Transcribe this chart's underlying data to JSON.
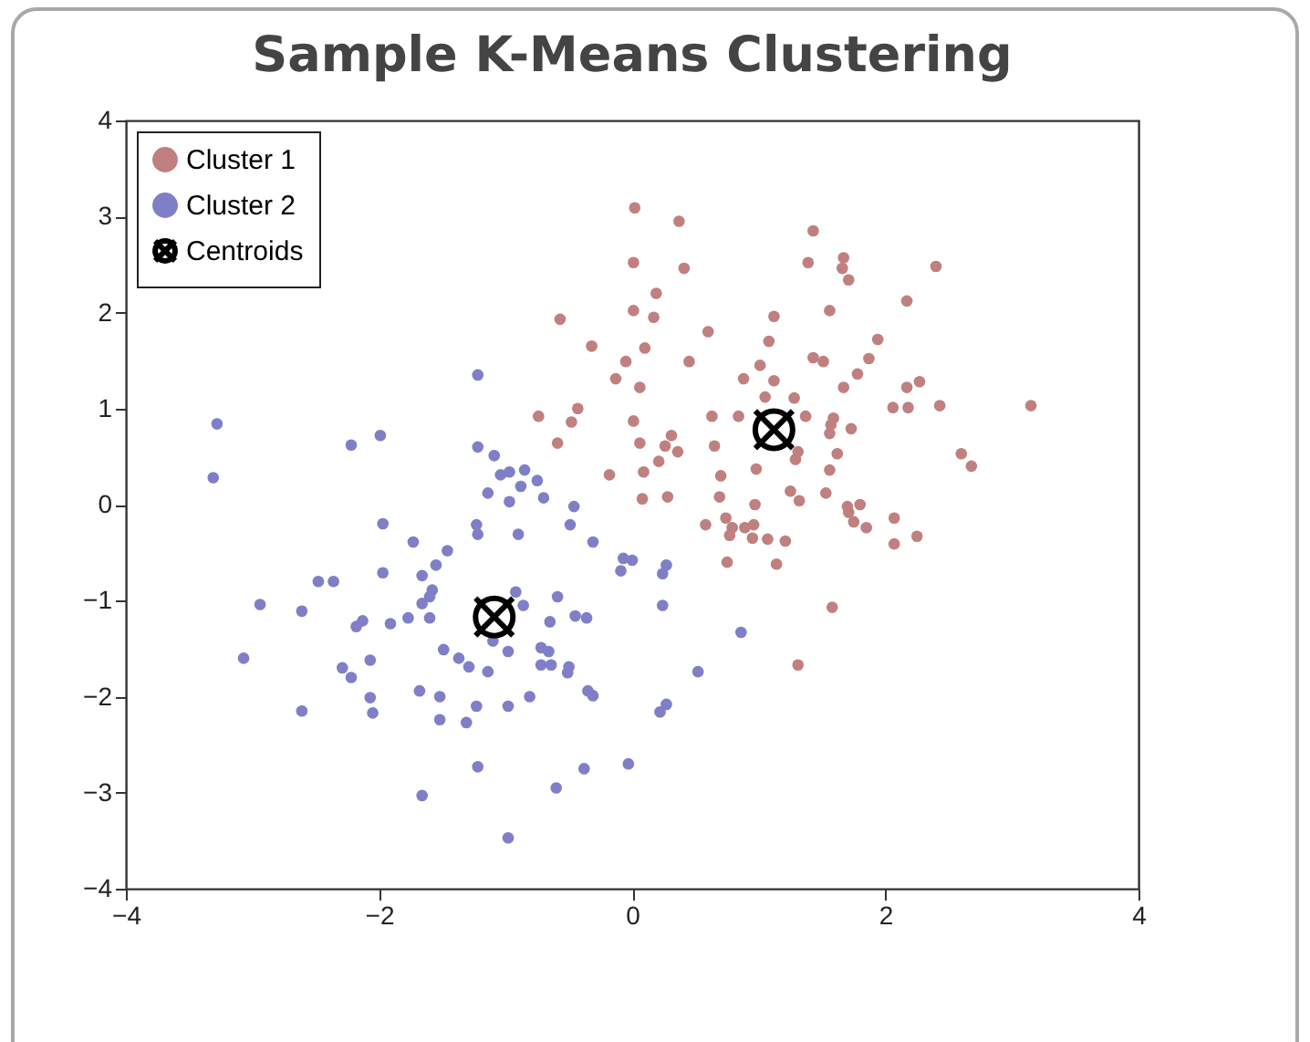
{
  "chart_data": {
    "type": "scatter",
    "title": "Sample K-Means Clustering",
    "xlim": [
      -4,
      4
    ],
    "xticks": [
      -4,
      -2,
      0,
      2,
      4
    ],
    "ylim": [
      -4,
      4
    ],
    "yticks": [
      -4,
      -3,
      -2,
      -1,
      0,
      1,
      2,
      3,
      4
    ],
    "grid": false,
    "legend": "top left",
    "series": [
      {
        "name": "Cluster 1",
        "color": "#c08080",
        "marker": "circle",
        "x": [
          0.02,
          0.37,
          1.43,
          0.01,
          0.41,
          1.39,
          1.67,
          1.66,
          1.71,
          2.4,
          0.19,
          0.01,
          0.17,
          1.12,
          1.56,
          2.17,
          0.6,
          1.08,
          1.94,
          0.1,
          -0.05,
          0.45,
          1.01,
          1.43,
          1.51,
          1.87,
          1.78,
          0.88,
          1.12,
          0.06,
          1.67,
          2.17,
          2.27,
          1.05,
          1.28,
          0.01,
          0.63,
          0.84,
          1.37,
          1.59,
          1.57,
          1.56,
          2.06,
          2.18,
          2.43,
          3.15,
          1.73,
          0.06,
          0.31,
          0.26,
          0.36,
          0.65,
          0.98,
          1.31,
          1.29,
          1.62,
          1.56,
          2.6,
          2.68,
          0.09,
          0.21,
          0.7,
          0.08,
          0.28,
          0.69,
          1.25,
          1.32,
          0.97,
          1.53,
          1.7,
          1.8,
          -0.57,
          -0.32,
          -0.13,
          -0.43,
          -0.74,
          -0.48,
          -0.59,
          -0.18,
          0.58,
          0.74,
          0.79,
          0.77,
          0.89,
          0.96,
          0.95,
          1.07,
          1.21,
          0.75,
          1.14,
          1.71,
          1.75,
          1.85,
          2.07,
          2.07,
          2.25,
          1.58,
          1.31
        ],
        "values": [
          3.09,
          2.95,
          2.85,
          2.52,
          2.46,
          2.52,
          2.57,
          2.46,
          2.34,
          2.48,
          2.2,
          2.02,
          1.95,
          1.96,
          2.02,
          2.12,
          1.8,
          1.7,
          1.72,
          1.63,
          1.49,
          1.49,
          1.45,
          1.53,
          1.49,
          1.52,
          1.36,
          1.31,
          1.29,
          1.22,
          1.22,
          1.22,
          1.28,
          1.12,
          1.11,
          0.87,
          0.92,
          0.92,
          0.92,
          0.9,
          0.83,
          0.74,
          1.01,
          1.01,
          1.03,
          1.03,
          0.79,
          0.64,
          0.72,
          0.61,
          0.55,
          0.61,
          0.37,
          0.55,
          0.47,
          0.53,
          0.36,
          0.53,
          0.4,
          0.34,
          0.45,
          0.3,
          0.06,
          0.08,
          0.08,
          0.14,
          0.04,
          0.0,
          0.12,
          -0.02,
          0.0,
          1.93,
          1.65,
          1.31,
          1.0,
          0.92,
          0.86,
          0.64,
          0.31,
          -0.21,
          -0.14,
          -0.24,
          -0.32,
          -0.24,
          -0.21,
          -0.35,
          -0.36,
          -0.38,
          -0.6,
          -0.62,
          -0.08,
          -0.18,
          -0.24,
          -0.14,
          -0.41,
          -0.33,
          -1.07,
          -1.67
        ]
      },
      {
        "name": "Cluster 2",
        "color": "#7f7fc8",
        "marker": "circle",
        "x": [
          -1.22,
          -3.28,
          -3.31,
          -2.22,
          -1.99,
          -1.22,
          -1.09,
          -1.04,
          -0.97,
          -0.85,
          -0.75,
          -1.14,
          -0.88,
          -0.97,
          -0.7,
          -0.46,
          -1.97,
          -1.23,
          -1.22,
          -0.9,
          -0.49,
          -1.73,
          -1.46,
          -0.31,
          -0.07,
          -0.09,
          0.0,
          -2.48,
          -2.36,
          -1.97,
          -1.66,
          -1.55,
          -1.58,
          -1.6,
          -1.66,
          -2.94,
          -2.61,
          -2.18,
          -2.13,
          -1.91,
          -1.77,
          -1.6,
          -0.92,
          -0.86,
          -0.59,
          -0.45,
          -0.36,
          -0.65,
          -1.1,
          -0.98,
          -1.49,
          -3.07,
          -2.29,
          -2.22,
          -2.07,
          -1.37,
          -1.29,
          -1.14,
          -0.72,
          -0.66,
          -0.72,
          -0.64,
          -0.5,
          -0.51,
          -0.35,
          -0.31,
          -2.07,
          -2.05,
          -2.61,
          -1.68,
          -1.52,
          -1.52,
          -1.23,
          -1.31,
          -0.98,
          -0.81,
          -1.22,
          -1.66,
          -0.6,
          -0.38,
          -0.03,
          -0.98,
          0.27,
          0.24,
          0.24,
          0.86,
          0.52,
          0.27,
          0.22
        ],
        "values": [
          1.35,
          0.84,
          0.28,
          0.62,
          0.72,
          0.6,
          0.51,
          0.31,
          0.34,
          0.36,
          0.25,
          0.12,
          0.19,
          0.03,
          0.07,
          -0.02,
          -0.2,
          -0.21,
          -0.31,
          -0.31,
          -0.21,
          -0.39,
          -0.48,
          -0.39,
          -0.56,
          -0.69,
          -0.58,
          -0.8,
          -0.8,
          -0.71,
          -0.74,
          -0.63,
          -0.89,
          -0.96,
          -1.03,
          -1.04,
          -1.11,
          -1.27,
          -1.21,
          -1.24,
          -1.18,
          -1.18,
          -0.91,
          -1.05,
          -0.96,
          -1.16,
          -1.18,
          -1.22,
          -1.42,
          -1.53,
          -1.51,
          -1.6,
          -1.7,
          -1.8,
          -1.62,
          -1.6,
          -1.69,
          -1.74,
          -1.49,
          -1.53,
          -1.67,
          -1.67,
          -1.69,
          -1.75,
          -1.94,
          -1.99,
          -2.01,
          -2.17,
          -2.15,
          -1.94,
          -2.0,
          -2.24,
          -2.1,
          -2.27,
          -2.1,
          -2.0,
          -2.73,
          -3.03,
          -2.95,
          -2.75,
          -2.7,
          -3.47,
          -0.63,
          -0.72,
          -1.05,
          -1.33,
          -1.74,
          -2.08,
          -2.16
        ]
      },
      {
        "name": "Centroids",
        "color": "#000000",
        "marker": "cross",
        "x": [
          1.12,
          -1.09
        ],
        "values": [
          0.78,
          -1.17
        ]
      }
    ]
  }
}
